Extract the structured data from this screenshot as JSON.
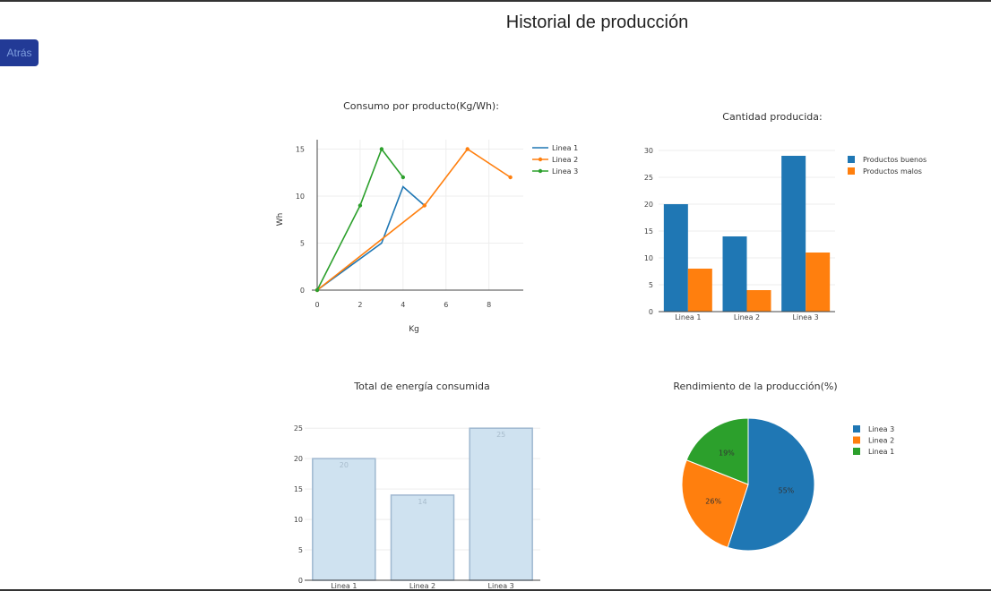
{
  "page": {
    "title": "Historial de producción",
    "back_label": "Atrás"
  },
  "colors": {
    "blue": "#1f77b4",
    "orange": "#ff7f0e",
    "green": "#2ca02c",
    "bar_fill": "#cfe2f0",
    "bar_stroke": "#9fb8d0",
    "button": "#223a96"
  },
  "chart_data": [
    {
      "type": "line",
      "title": "Consumo por producto(Kg/Wh):",
      "xlabel": "Kg",
      "ylabel": "Wh",
      "xlim": [
        0,
        9.6
      ],
      "ylim": [
        0,
        16
      ],
      "xticks": [
        0,
        2,
        4,
        6,
        8
      ],
      "yticks": [
        0,
        5,
        10,
        15
      ],
      "legend": "top-right",
      "series": [
        {
          "name": "Linea 1",
          "color": "#1f77b4",
          "markers": false,
          "x": [
            0,
            3,
            4,
            5
          ],
          "y": [
            0,
            5,
            11,
            9
          ]
        },
        {
          "name": "Linea 2",
          "color": "#ff7f0e",
          "markers": true,
          "x": [
            0,
            5,
            7,
            9
          ],
          "y": [
            0,
            9,
            15,
            12
          ]
        },
        {
          "name": "Linea 3",
          "color": "#2ca02c",
          "markers": true,
          "x": [
            0,
            2,
            3,
            4
          ],
          "y": [
            0,
            9,
            15,
            12
          ]
        }
      ]
    },
    {
      "type": "bar",
      "title": "Cantidad producida:",
      "categories": [
        "Linea 1",
        "Linea 2",
        "Linea 3"
      ],
      "ylim": [
        0,
        32
      ],
      "yticks": [
        0,
        5,
        10,
        15,
        20,
        25,
        30
      ],
      "legend": "top-right",
      "series": [
        {
          "name": "Productos buenos",
          "color": "#1f77b4",
          "values": [
            20,
            14,
            29
          ]
        },
        {
          "name": "Productos malos",
          "color": "#ff7f0e",
          "values": [
            8,
            4,
            11
          ]
        }
      ]
    },
    {
      "type": "bar",
      "title": "Total de energía consumida",
      "categories": [
        "Linea 1",
        "Linea 2",
        "Linea 3"
      ],
      "values": [
        20,
        14,
        25
      ],
      "data_labels": [
        "20",
        "14",
        "25"
      ],
      "ylim": [
        0,
        26.5
      ],
      "yticks": [
        0,
        5,
        10,
        15,
        20,
        25
      ]
    },
    {
      "type": "pie",
      "title": "Rendimiento de la producción(%)",
      "legend": "top-right",
      "slices": [
        {
          "label": "Linea 3",
          "value": 55,
          "text": "55%",
          "color": "#1f77b4"
        },
        {
          "label": "Linea 2",
          "value": 26,
          "text": "26%",
          "color": "#ff7f0e"
        },
        {
          "label": "Linea 1",
          "value": 19,
          "text": "19%",
          "color": "#2ca02c"
        }
      ]
    }
  ]
}
